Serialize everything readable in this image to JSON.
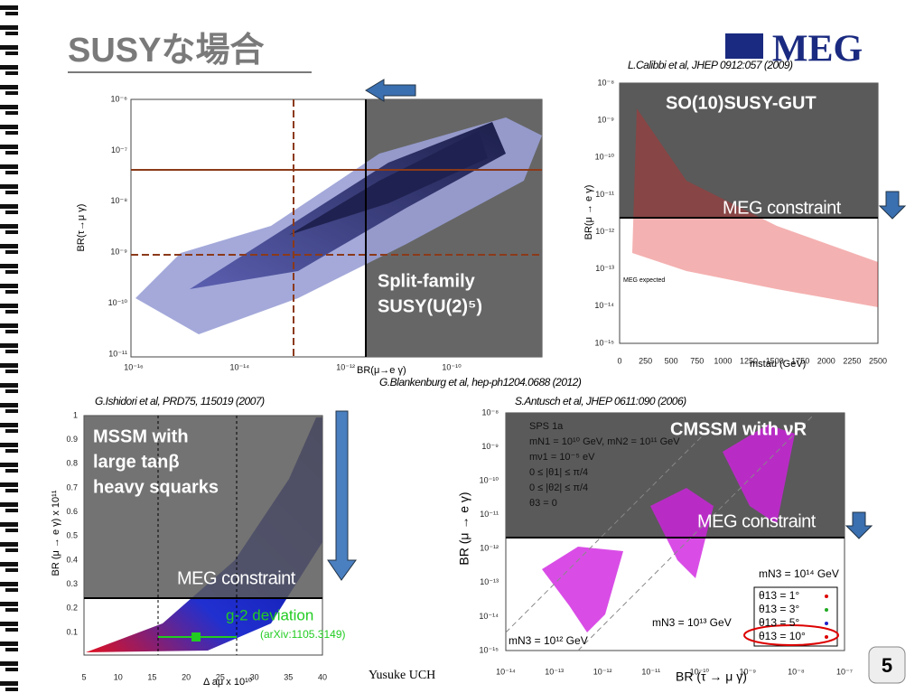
{
  "header": {
    "title": "SUSYな場合",
    "logo": "MEG"
  },
  "panels": [
    {
      "citation": "G.Blankenburg et al, hep-ph1204.0688 (2012)",
      "label": [
        "Split-family",
        "SUSY(U(2)⁵)"
      ],
      "x_axis": "BR(μ→e γ)",
      "y_axis": "BR(τ→μ γ)",
      "xticks": [
        "10⁻¹⁶",
        "10⁻¹⁴",
        "10⁻¹²",
        "10⁻¹⁰"
      ],
      "yticks": [
        "10⁻⁶",
        "10⁻⁷",
        "10⁻⁸",
        "10⁻⁹",
        "10⁻¹⁰",
        "10⁻¹¹"
      ]
    },
    {
      "citation": "L.Calibbi et al, JHEP 0912:057 (2009)",
      "label": [
        "SO(10)SUSY-GUT"
      ],
      "constraint": "MEG constraint",
      "note": "MEG expected",
      "x_axis": "mstau (GeV)",
      "y_axis": "BR(μ → e γ)",
      "xticks": [
        "0",
        "250",
        "500",
        "750",
        "1000",
        "1250",
        "1500",
        "1750",
        "2000",
        "2250",
        "2500"
      ],
      "yticks": [
        "10⁻⁸",
        "10⁻⁹",
        "10⁻¹⁰",
        "10⁻¹¹",
        "10⁻¹²",
        "10⁻¹³",
        "10⁻¹⁴",
        "10⁻¹⁵"
      ]
    },
    {
      "citation": "G.Ishidori et al, PRD75, 115019 (2007)",
      "label": [
        "MSSM with",
        "large tanβ",
        "heavy squarks"
      ],
      "constraint": "MEG constraint",
      "deviation": "g-2 deviation",
      "reference": "(arXiv:1105.3149)",
      "x_axis": "Δ aμ x 10¹⁰",
      "y_axis": "BR (μ → e γ) x 10¹¹",
      "xticks": [
        "5",
        "10",
        "15",
        "20",
        "25",
        "30",
        "35",
        "40"
      ],
      "yticks": [
        "1",
        "0.9",
        "0.8",
        "0.7",
        "0.6",
        "0.5",
        "0.4",
        "0.3",
        "0.2",
        "0.1"
      ]
    },
    {
      "citation": "S.Antusch et al, JHEP 0611:090 (2006)",
      "label": [
        "CMSSM with νR"
      ],
      "constraint": "MEG constraint",
      "x_axis": "BR (τ → μ γ)",
      "y_axis": "BR (μ → e γ)",
      "xticks": [
        "10⁻¹⁴",
        "10⁻¹³",
        "10⁻¹²",
        "10⁻¹¹",
        "10⁻¹⁰",
        "10⁻⁹",
        "10⁻⁸",
        "10⁻⁷"
      ],
      "yticks": [
        "10⁻⁸",
        "10⁻⁹",
        "10⁻¹⁰",
        "10⁻¹¹",
        "10⁻¹²",
        "10⁻¹³",
        "10⁻¹⁴",
        "10⁻¹⁵"
      ],
      "inset": [
        "SPS 1a",
        "mN1 = 10¹⁰ GeV, mN2 = 10¹¹ GeV",
        "mν1 = 10⁻⁵ eV",
        "0 ≤ |θ1| ≤ π/4",
        "0 ≤ |θ2| ≤ π/4",
        "θ3 = 0"
      ],
      "legend": [
        "θ13 = 1°",
        "θ13 = 3°",
        "θ13 = 5°",
        "θ13 = 10°"
      ],
      "mass_labels": [
        "mN3 = 10¹² GeV",
        "mN3 = 10¹³ GeV",
        "mN3 = 10¹⁴ GeV"
      ]
    }
  ],
  "footer": {
    "author": "Yusuke UCH",
    "page": "5"
  }
}
